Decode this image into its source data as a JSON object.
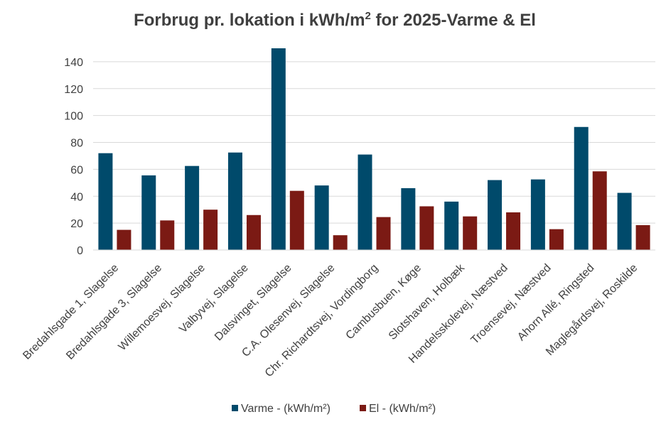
{
  "chart_data": {
    "type": "bar",
    "title": {
      "main": "Forbrug pr. lokation i kWh/m",
      "superscript": "2",
      "suffix": " for 2025-Varme & El"
    },
    "xlabel": "",
    "ylabel": "",
    "ylim": [
      0,
      150
    ],
    "yticks": [
      0,
      20,
      40,
      60,
      80,
      100,
      120,
      140
    ],
    "grid": true,
    "legend_position": "bottom",
    "categories": [
      "Bredahlsgade 1, Slagelse",
      "Bredahlsgade 3, Slagelse",
      "Willemoesvej, Slagelse",
      "Valbyvej, Slagelse",
      "Dalsvinget, Slagelse",
      "C.A. Olesenvej, Slagelse",
      "Chr. Richardtsvej, Vordingborg",
      "Cambusbuen, Køge",
      "Slotshaven, Holbæk",
      "Handelsskolevej, Næstved",
      "Troensevej, Næstved",
      "Ahorn Allé, Ringsted",
      "Maglegårdsvej, Roskilde"
    ],
    "series": [
      {
        "name": "Varme - (kWh/m²)",
        "color": "#004a6b",
        "values": [
          72,
          55.5,
          62.5,
          72.5,
          150,
          48,
          71,
          46,
          36,
          52,
          52.5,
          91.5,
          42.5
        ]
      },
      {
        "name": "El - (kWh/m²)",
        "color": "#7b1a14",
        "values": [
          15,
          22,
          30,
          26,
          44,
          11,
          24.5,
          32.5,
          25,
          28,
          15.5,
          58.5,
          18.5
        ]
      }
    ]
  }
}
